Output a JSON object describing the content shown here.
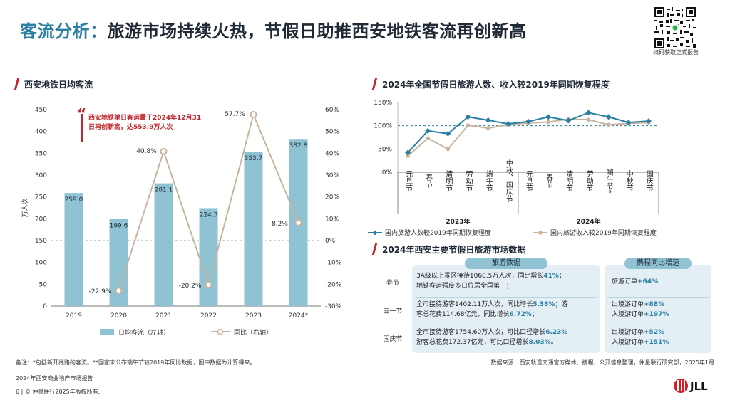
{
  "title": {
    "part1": "客流分析：",
    "part2": "旅游市场持续火热，节假日助推西安地铁客流再创新高"
  },
  "qr_caption": "扫码获取正式报告",
  "left_chart": {
    "section_title": "西安地铁日均客流",
    "callout": "西安地铁单日客运量于2024年12月31日再创新高，达553.9万人次",
    "legend_bar": "日均客流（左轴）",
    "legend_line": "同比（右轴）"
  },
  "right_chart": {
    "section_title": "2024年全国节假日旅游人数、收入较2019年同期恢复程度",
    "legend_a": "国内旅游人数较2019年同期恢复程度",
    "legend_b": "国内旅游收入较2019年同期恢复程度",
    "year_2023": "2023年",
    "year_2024": "2024年"
  },
  "table": {
    "section_title": "2024年西安主要节假日旅游市场数据",
    "head_tourism": "旅游数据",
    "head_ctrip": "携程同比增速",
    "rows": [
      {
        "label": "春节",
        "line1a": "3A级以上景区接待1060.5万人次，同比增长",
        "line1b": "41%",
        "line1c": "；",
        "line2": "地铁客运强度多日位居全国第一；",
        "c1a": "旅游订单",
        "c1b": "+64%",
        "c2a": "",
        "c2b": ""
      },
      {
        "label": "五一节",
        "line1a": "全市接待游客1402.11万人次，同比增长",
        "line1b": "5.38%",
        "line1c": "；游",
        "line2a": "客总花费114.68亿元，同比增长",
        "line2b": "6.72%",
        "line2c": "；",
        "c1a": "出境游订单",
        "c1b": "+88%",
        "c2a": "入境游订单",
        "c2b": "+197%"
      },
      {
        "label": "国庆节",
        "line1a": "全市接待游客1754.60万人次，可比口径增长",
        "line1b": "6.23%",
        "line1c": "",
        "line2a": "游客总花费172.37亿元，可比口径增长",
        "line2b": "8.03%",
        "line2c": "。",
        "c1a": "出境游订单",
        "c1b": "+52%",
        "c2a": "入境游订单",
        "c2b": "+151%"
      }
    ]
  },
  "footer": {
    "note": "备注：*包括新开线路的客流。**国家未公布端午节较2019年同比数据，图中数据为计算得来。",
    "source": "数据来源：西安轨道交通官方媒体、携程、公开信息整理，仲量联行研究部，2025年1月",
    "report": "2024年西安商业地产市场报告",
    "copyright": "6 | © 仲量联行2025年版权所有."
  },
  "colors": {
    "bar": "#8fc3d3",
    "line_beige": "#c9b39e",
    "teal": "#2b7fa3",
    "red": "#c0262d"
  },
  "chart_data": [
    {
      "type": "bar",
      "title": "西安地铁日均客流",
      "categories": [
        "2019",
        "2020",
        "2021",
        "2022",
        "2023",
        "2024*"
      ],
      "series": [
        {
          "name": "日均客流（左轴）",
          "values": [
            259.0,
            199.6,
            281.1,
            224.3,
            353.7,
            382.8
          ]
        },
        {
          "name": "同比（右轴）",
          "values": [
            null,
            -22.9,
            40.8,
            -20.2,
            57.7,
            8.2
          ]
        }
      ],
      "y_left_label": "万人次",
      "y_left_ticks": [
        "0",
        "50",
        "100",
        "150",
        "200",
        "250",
        "300",
        "350",
        "400",
        "450"
      ],
      "y_left_lim": [
        0,
        450
      ],
      "y_right_ticks": [
        "-30%",
        "-20%",
        "-10%",
        "0%",
        "10%",
        "20%",
        "30%",
        "40%",
        "50%",
        "60%"
      ],
      "y_right_lim": [
        -30,
        60
      ],
      "bar_labels": [
        "259.0",
        "199.6",
        "281.1",
        "224.3",
        "353.7",
        "382.8"
      ],
      "line_labels": [
        "",
        "-22.9%",
        "40.8%",
        "-20.2%",
        "57.7%",
        "8.2%"
      ]
    },
    {
      "type": "line",
      "title": "2024年全国节假日旅游人数、收入较2019年同期恢复程度",
      "categories": [
        "元旦节",
        "春节",
        "清明节",
        "劳动节",
        "端午节",
        "中秋、国庆节",
        "元旦节",
        "春节",
        "清明节",
        "劳动节",
        "端午节*",
        "中秋节",
        "国庆节"
      ],
      "category_groups": [
        {
          "name": "2023年",
          "count": 6
        },
        {
          "name": "2024年",
          "count": 7
        }
      ],
      "series": [
        {
          "name": "国内旅游人数较2019年同期恢复程度",
          "values": [
            42,
            89,
            83,
            119,
            112,
            104,
            109,
            119,
            111,
            128,
            119,
            107,
            110
          ]
        },
        {
          "name": "国内旅游收入较2019年同期恢复程度",
          "values": [
            35,
            73,
            50,
            101,
            95,
            102,
            106,
            108,
            114,
            113,
            102,
            105,
            107
          ]
        }
      ],
      "y_ticks": [
        "0%",
        "50%",
        "100%",
        "150%"
      ],
      "ylim": [
        0,
        150
      ]
    }
  ]
}
